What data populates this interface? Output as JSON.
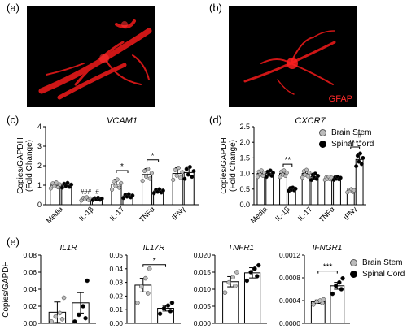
{
  "panel_labels": {
    "a": "(a)",
    "b": "(b)",
    "c": "(c)",
    "d": "(d)",
    "e": "(e)"
  },
  "micrograph": {
    "stain_label": "GFAP",
    "stain_color": "#ff2a2a"
  },
  "legend": {
    "items": [
      {
        "label": "Brain Stem",
        "fill": "#bbbbbb"
      },
      {
        "label": "Spinal Cord",
        "fill": "#000000"
      }
    ]
  },
  "colors": {
    "brain_stem": "#bbbbbb",
    "spinal_cord": "#000000"
  },
  "chart_data": [
    {
      "panel": "(c)",
      "type": "bar",
      "title": "VCAM1",
      "ylabel": "Copies/GAPDH (Fold Change)",
      "ylabel_line1": "Copies/GAPDH",
      "ylabel_line2": "(Fold Change)",
      "ylim": [
        0,
        4
      ],
      "yticks": [
        "0",
        "1",
        "2",
        "3",
        "4"
      ],
      "ytick_values": [
        0,
        1,
        2,
        3,
        4
      ],
      "categories": [
        "Media",
        "IL-1β",
        "IL-17",
        "TNFα",
        "IFNγ"
      ],
      "series": [
        {
          "name": "Brain Stem",
          "values": [
            1.0,
            0.3,
            1.05,
            1.55,
            1.6
          ],
          "errors": [
            0.15,
            0.08,
            0.25,
            0.3,
            0.3
          ]
        },
        {
          "name": "Spinal Cord",
          "values": [
            1.0,
            0.3,
            0.45,
            0.7,
            1.65
          ],
          "errors": [
            0.12,
            0.06,
            0.1,
            0.1,
            0.3
          ]
        }
      ],
      "annotations": [
        {
          "text": "###",
          "category": 1,
          "series": 0,
          "y": 0.55
        },
        {
          "text": "#",
          "category": 1,
          "series": 1,
          "y": 0.55
        },
        {
          "text": "*",
          "category": 2,
          "bracket": true,
          "y": 1.75
        },
        {
          "text": "*",
          "category": 3,
          "bracket": true,
          "y": 2.3
        }
      ]
    },
    {
      "panel": "(d)",
      "type": "bar",
      "title": "CXCR7",
      "ylabel": "Copies/GAPDH (Fold Change)",
      "ylabel_line1": "Copies/GAPDH",
      "ylabel_line2": "(Fold Change)",
      "ylim": [
        0,
        2.5
      ],
      "yticks": [
        "0.0",
        "0.5",
        "1.0",
        "1.5",
        "2.0",
        "2.5"
      ],
      "ytick_values": [
        0,
        0.5,
        1.0,
        1.5,
        2.0,
        2.5
      ],
      "categories": [
        "Media",
        "IL-1β",
        "IL-17",
        "TNFα",
        "IFNγ"
      ],
      "series": [
        {
          "name": "Brain Stem",
          "values": [
            1.0,
            1.0,
            1.0,
            0.85,
            0.45
          ],
          "errors": [
            0.1,
            0.1,
            0.12,
            0.05,
            0.05
          ]
        },
        {
          "name": "Spinal Cord",
          "values": [
            1.0,
            0.5,
            0.9,
            0.85,
            1.45
          ],
          "errors": [
            0.1,
            0.05,
            0.1,
            0.05,
            0.2
          ]
        }
      ],
      "annotations": [
        {
          "text": "**",
          "category": 1,
          "bracket": true,
          "y": 1.3
        },
        {
          "text": "****",
          "category": 4,
          "bracket": true,
          "y": 1.85
        },
        {
          "text": "#",
          "category": 4,
          "series": 1,
          "y": 2.15
        }
      ]
    },
    {
      "panel": "(e)",
      "type": "bar",
      "title": "IL1R",
      "ylabel": "Copies/GAPDH",
      "ylim": [
        0,
        0.08
      ],
      "yticks": [
        "0.00",
        "0.02",
        "0.04",
        "0.06",
        "0.08"
      ],
      "ytick_values": [
        0,
        0.02,
        0.04,
        0.06,
        0.08
      ],
      "categories": [
        "Brain Stem",
        "Spinal Cord"
      ],
      "values": [
        0.013,
        0.024
      ],
      "errors": [
        0.012,
        0.012
      ],
      "points": [
        [
          0.002,
          0.005,
          0.008,
          0.012,
          0.03
        ],
        [
          0.002,
          0.006,
          0.01,
          0.02,
          0.05
        ]
      ],
      "annotations": []
    },
    {
      "panel": "(e)",
      "type": "bar",
      "title": "IL17R",
      "ylim": [
        0,
        0.05
      ],
      "yticks": [
        "0.00",
        "0.01",
        "0.02",
        "0.03",
        "0.04",
        "0.05"
      ],
      "ytick_values": [
        0,
        0.01,
        0.02,
        0.03,
        0.04,
        0.05
      ],
      "categories": [
        "Brain Stem",
        "Spinal Cord"
      ],
      "values": [
        0.028,
        0.011
      ],
      "errors": [
        0.005,
        0.002
      ],
      "points": [
        [
          0.015,
          0.022,
          0.027,
          0.033,
          0.04
        ],
        [
          0.007,
          0.009,
          0.011,
          0.013,
          0.015
        ]
      ],
      "annotations": [
        {
          "text": "*",
          "bracket": true,
          "y": 0.043
        }
      ]
    },
    {
      "panel": "(e)",
      "type": "bar",
      "title": "TNFR1",
      "ylim": [
        0,
        0.02
      ],
      "yticks": [
        "0.000",
        "0.005",
        "0.010",
        "0.015",
        "0.020"
      ],
      "ytick_values": [
        0,
        0.005,
        0.01,
        0.015,
        0.02
      ],
      "categories": [
        "Brain Stem",
        "Spinal Cord"
      ],
      "values": [
        0.0122,
        0.0148
      ],
      "errors": [
        0.0015,
        0.0015
      ],
      "points": [
        [
          0.009,
          0.011,
          0.012,
          0.0135,
          0.015
        ],
        [
          0.0125,
          0.0138,
          0.015,
          0.016,
          0.017
        ]
      ],
      "annotations": []
    },
    {
      "panel": "(e)",
      "type": "bar",
      "title": "IFNGR1",
      "ylim": [
        0,
        0.0012
      ],
      "yticks": [
        "0.0000",
        "0.0004",
        "0.0008",
        "0.0012"
      ],
      "ytick_values": [
        0,
        0.0004,
        0.0008,
        0.0012
      ],
      "categories": [
        "Brain Stem",
        "Spinal Cord"
      ],
      "values": [
        0.00038,
        0.00066
      ],
      "errors": [
        3e-05,
        6e-05
      ],
      "points": [
        [
          0.00033,
          0.00036,
          0.00038,
          0.0004,
          0.00042
        ],
        [
          0.00052,
          0.0006,
          0.00066,
          0.00072,
          0.00079
        ]
      ],
      "annotations": [
        {
          "text": "***",
          "bracket": true,
          "y": 0.00092
        }
      ]
    }
  ]
}
